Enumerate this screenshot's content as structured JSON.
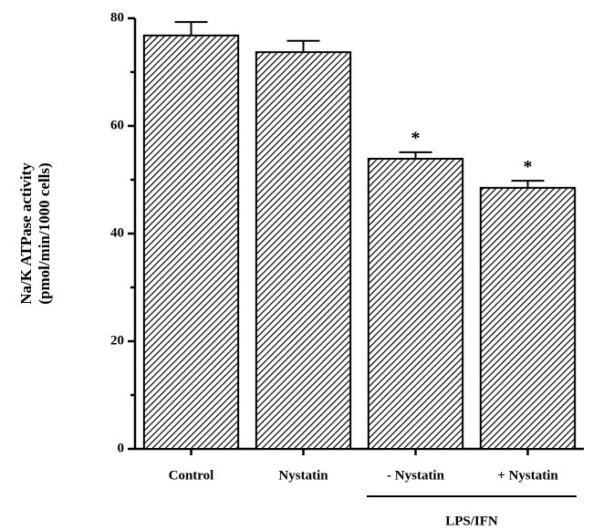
{
  "chart_data": {
    "type": "bar",
    "y_label": [
      "Na/K ATPase activity",
      "(pmol/min/1000 cells)"
    ],
    "categories": [
      "Control",
      "Nystatin",
      "- Nystatin",
      "+ Nystatin"
    ],
    "values": [
      76.8,
      73.7,
      53.9,
      48.5
    ],
    "errors": [
      2.5,
      2.1,
      1.2,
      1.3
    ],
    "value_annotations": [
      null,
      null,
      "*",
      "*"
    ],
    "group": {
      "label": "LPS/IFN",
      "categories": [
        2,
        3
      ]
    },
    "color": "#000000",
    "pattern": "diagonal-hatch",
    "ylim": [
      0,
      80
    ],
    "yticks": [
      0,
      20,
      40,
      60,
      80
    ],
    "minor_yticks": [
      10,
      30,
      50,
      70
    ],
    "grid": false
  }
}
